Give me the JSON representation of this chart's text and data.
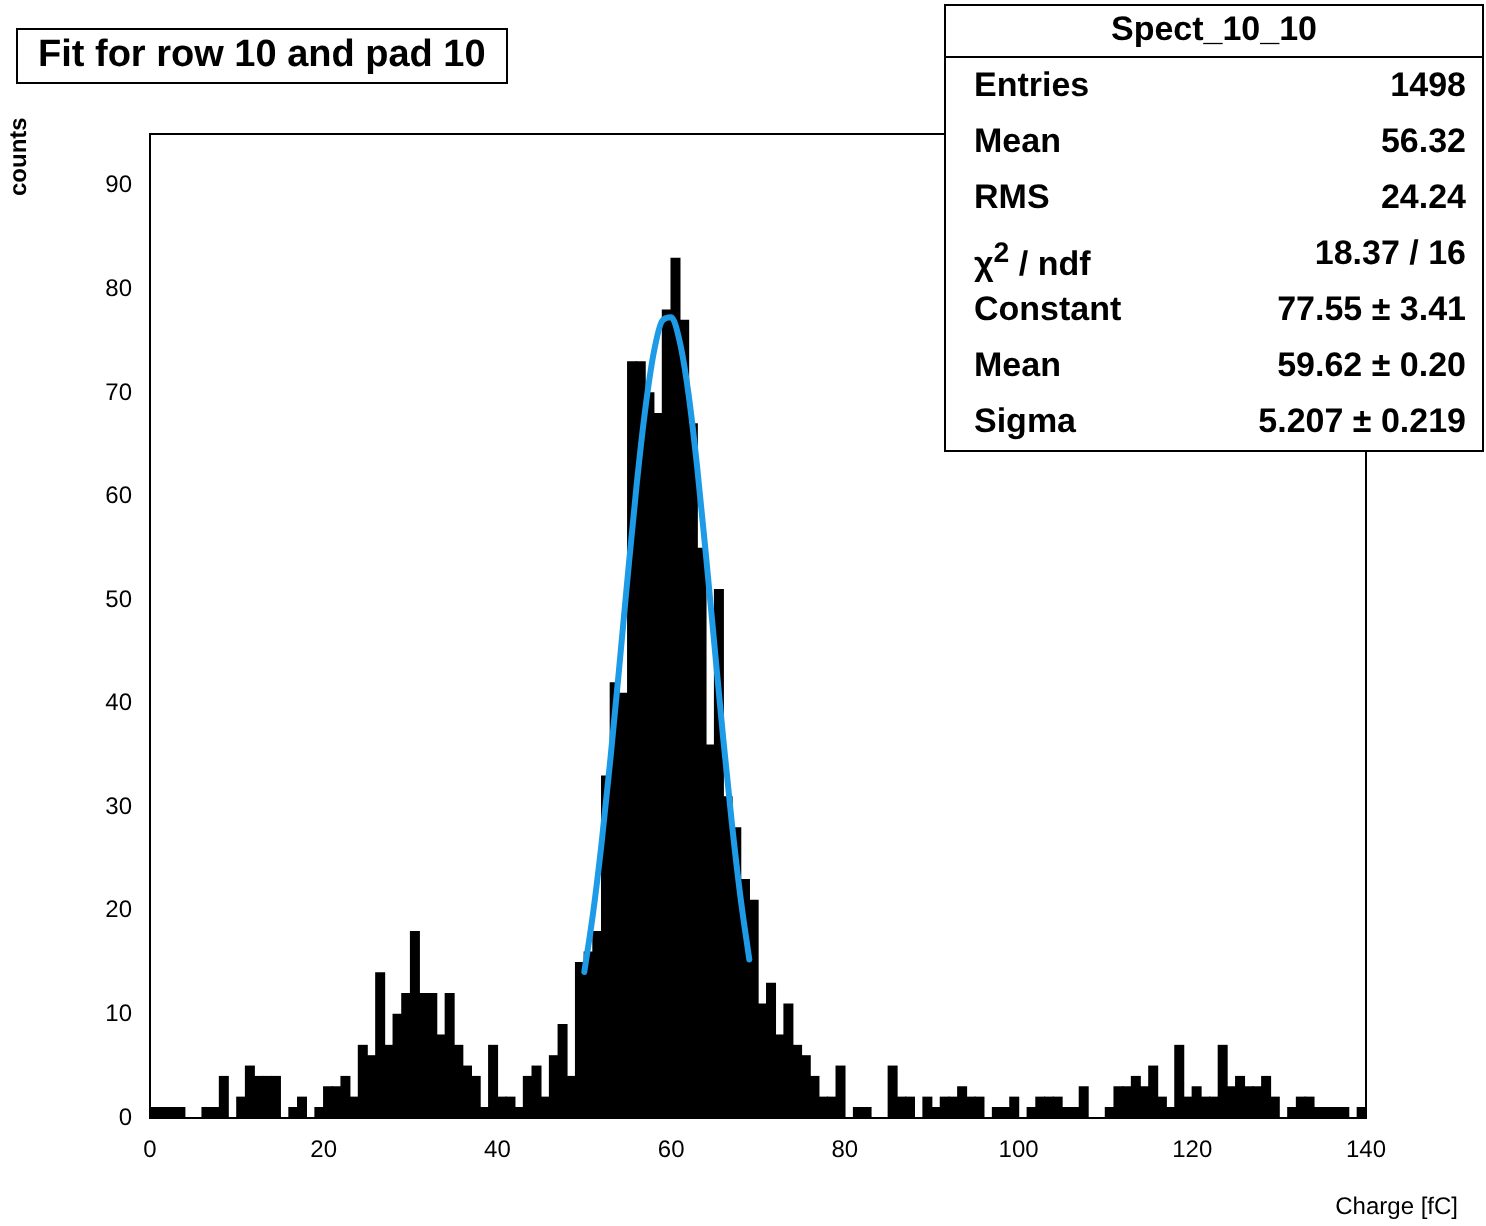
{
  "chart_data": {
    "type": "histogram",
    "title": "Fit for row 10 and pad 10",
    "xlabel": "Charge [fC]",
    "ylabel": "counts",
    "annotations": [
      "Spect_10_10",
      "Entries",
      "1498",
      "Mean",
      "56.32",
      "RMS",
      "24.24",
      "χ$^{2}$ / ndf",
      "18.37 / 16",
      "Constant",
      "77.55 ± 3.41",
      "Mean",
      "59.62 ± 0.20",
      "Sigma",
      "5.207 ± 0.219"
    ],
    "bins": [
      0,
      1,
      2,
      3,
      4,
      5,
      6,
      7,
      8,
      9,
      10,
      11,
      12,
      13,
      14,
      15,
      16,
      17,
      18,
      19,
      20,
      21,
      22,
      23,
      24,
      25,
      26,
      27,
      28,
      29,
      30,
      31,
      32,
      33,
      34,
      35,
      36,
      37,
      38,
      39,
      40,
      41,
      42,
      43,
      44,
      45,
      46,
      47,
      48,
      49,
      50,
      51,
      52,
      53,
      54,
      55,
      56,
      57,
      58,
      59,
      60,
      61,
      62,
      63,
      64,
      65,
      66,
      67,
      68,
      69,
      70,
      71,
      72,
      73,
      74,
      75,
      76,
      77,
      78,
      79,
      80,
      81,
      82,
      83,
      84,
      85,
      86,
      87,
      88,
      89,
      90,
      91,
      92,
      93,
      94,
      95,
      96,
      97,
      98,
      99,
      100,
      101,
      102,
      103,
      104,
      105,
      106,
      107,
      108,
      109,
      110,
      111,
      112,
      113,
      114,
      115,
      116,
      117,
      118,
      119,
      120,
      121,
      122,
      123,
      124,
      125,
      126,
      127,
      128,
      129,
      130,
      131,
      132,
      133,
      134,
      135,
      136,
      137,
      138,
      139,
      140
    ],
    "series": [
      {
        "type": "histogram",
        "color": "#000000",
        "values": [
          1,
          1,
          1,
          1,
          0,
          0,
          1,
          1,
          4,
          0,
          2,
          5,
          4,
          4,
          4,
          0,
          1,
          2,
          0,
          1,
          3,
          3,
          4,
          2,
          7,
          6,
          14,
          7,
          10,
          12,
          18,
          12,
          12,
          8,
          12,
          7,
          5,
          4,
          1,
          7,
          2,
          2,
          1,
          4,
          5,
          2,
          6,
          9,
          4,
          15,
          16,
          18,
          33,
          42,
          41,
          73,
          73,
          70,
          68,
          78,
          83,
          77,
          67,
          55,
          36,
          51,
          31,
          28,
          23,
          21,
          11,
          13,
          8,
          11,
          7,
          6,
          4,
          2,
          2,
          5,
          0,
          1,
          1,
          0,
          0,
          5,
          2,
          2,
          0,
          2,
          1,
          2,
          2,
          3,
          2,
          2,
          0,
          1,
          1,
          2,
          0,
          1,
          2,
          2,
          2,
          1,
          1,
          3,
          0,
          0,
          1,
          3,
          3,
          4,
          3,
          5,
          2,
          1,
          7,
          2,
          3,
          2,
          2,
          7,
          3,
          4,
          3,
          3,
          4,
          2,
          0,
          1,
          2,
          2,
          1,
          1,
          1,
          1,
          0,
          1
        ]
      },
      {
        "type": "line",
        "color": "#1e9be6",
        "x": [
          50,
          51,
          52,
          53,
          54,
          55,
          56,
          57,
          58,
          59,
          60,
          61,
          62,
          63,
          64,
          65,
          66,
          67,
          68,
          69
        ],
        "values": [
          14.1,
          19.7,
          26.6,
          34.6,
          43.3,
          52.3,
          60.9,
          68.3,
          73.9,
          77.0,
          77.3,
          74.9,
          69.9,
          62.8,
          54.4,
          45.5,
          36.6,
          28.4,
          21.2,
          15.3
        ]
      }
    ],
    "xlim": [
      0,
      140
    ],
    "xticks": [
      0,
      20,
      40,
      60,
      80,
      100,
      120,
      140
    ],
    "ylim": [
      0,
      95
    ],
    "yticks": [
      0,
      10,
      20,
      30,
      40,
      50,
      60,
      70,
      80,
      90
    ]
  }
}
